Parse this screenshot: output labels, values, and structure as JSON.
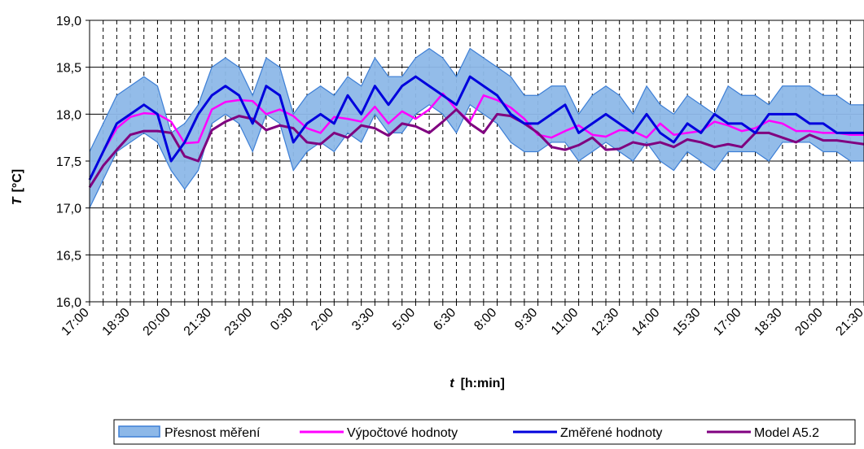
{
  "chart_data": {
    "type": "line",
    "xlabel_var": "t",
    "xlabel_unit": "[h:min]",
    "ylabel_var": "T",
    "ylabel_unit": "[°C]",
    "ylim": [
      16.0,
      19.0
    ],
    "ytick_step": 0.5,
    "yticks": [
      "16,0",
      "16,5",
      "17,0",
      "17,5",
      "18,0",
      "18,5",
      "19,0"
    ],
    "x_tick_labels": [
      "17:00",
      "18:30",
      "20:00",
      "21:30",
      "23:00",
      "0:30",
      "2:00",
      "3:30",
      "5:00",
      "6:30",
      "8:00",
      "9:30",
      "11:00",
      "12:30",
      "14:00",
      "15:30",
      "17:00",
      "18:30",
      "20:00",
      "21:30"
    ],
    "n_points": 58,
    "points_per_tick": 3,
    "grid": true,
    "legend_position": "bottom",
    "colors": {
      "band_fill": "#8db8e8",
      "band_edge": "#3d7fd6",
      "calc": "#ff00ff",
      "measured": "#0000dd",
      "model": "#800080"
    },
    "series": [
      {
        "name": "Přesnost měření",
        "kind": "band",
        "upper": [
          17.6,
          17.9,
          18.2,
          18.3,
          18.4,
          18.3,
          17.8,
          17.9,
          18.1,
          18.5,
          18.6,
          18.5,
          18.2,
          18.6,
          18.5,
          18.0,
          18.2,
          18.3,
          18.2,
          18.4,
          18.3,
          18.6,
          18.4,
          18.4,
          18.6,
          18.7,
          18.6,
          18.4,
          18.7,
          18.6,
          18.5,
          18.4,
          18.2,
          18.2,
          18.3,
          18.3,
          18.0,
          18.2,
          18.3,
          18.2,
          18.0,
          18.3,
          18.1,
          18.0,
          18.2,
          18.1,
          18.0,
          18.3,
          18.2,
          18.2,
          18.1,
          18.3,
          18.3,
          18.3,
          18.2,
          18.2,
          18.1,
          18.1
        ],
        "lower": [
          17.0,
          17.3,
          17.6,
          17.7,
          17.8,
          17.7,
          17.4,
          17.2,
          17.4,
          17.9,
          18.0,
          17.9,
          17.6,
          18.0,
          17.9,
          17.4,
          17.6,
          17.7,
          17.6,
          17.8,
          17.7,
          18.0,
          17.8,
          17.8,
          18.0,
          18.1,
          18.0,
          17.8,
          18.1,
          18.0,
          17.9,
          17.7,
          17.6,
          17.6,
          17.7,
          17.7,
          17.5,
          17.6,
          17.7,
          17.6,
          17.5,
          17.7,
          17.5,
          17.4,
          17.6,
          17.5,
          17.4,
          17.6,
          17.6,
          17.6,
          17.5,
          17.7,
          17.7,
          17.7,
          17.6,
          17.6,
          17.5,
          17.5
        ]
      },
      {
        "name": "Výpočtové hodnoty",
        "kind": "line",
        "values": [
          17.3,
          17.6,
          17.85,
          17.97,
          18.01,
          18.0,
          17.92,
          17.69,
          17.7,
          18.05,
          18.13,
          18.15,
          18.14,
          18.0,
          18.05,
          17.98,
          17.85,
          17.8,
          17.97,
          17.95,
          17.92,
          18.08,
          17.9,
          18.03,
          17.95,
          18.05,
          18.22,
          18.05,
          17.92,
          18.2,
          18.15,
          18.07,
          17.95,
          17.78,
          17.75,
          17.82,
          17.88,
          17.78,
          17.76,
          17.83,
          17.82,
          17.75,
          17.9,
          17.78,
          17.8,
          17.82,
          17.92,
          17.88,
          17.82,
          17.85,
          17.93,
          17.9,
          17.82,
          17.82,
          17.8,
          17.8,
          17.78,
          17.78
        ]
      },
      {
        "name": "Změřené hodnoty",
        "kind": "line",
        "values": [
          17.3,
          17.6,
          17.9,
          18.0,
          18.1,
          18.0,
          17.5,
          17.7,
          18.0,
          18.2,
          18.3,
          18.2,
          17.9,
          18.3,
          18.2,
          17.7,
          17.9,
          18.0,
          17.9,
          18.2,
          18.0,
          18.3,
          18.1,
          18.3,
          18.4,
          18.3,
          18.2,
          18.1,
          18.4,
          18.3,
          18.2,
          18.0,
          17.9,
          17.9,
          18.0,
          18.1,
          17.8,
          17.9,
          18.0,
          17.9,
          17.8,
          18.0,
          17.8,
          17.7,
          17.9,
          17.8,
          18.0,
          17.9,
          17.9,
          17.8,
          18.0,
          18.0,
          18.0,
          17.9,
          17.9,
          17.8,
          17.8,
          17.8
        ]
      },
      {
        "name": "Model A5.2",
        "kind": "line",
        "values": [
          17.22,
          17.45,
          17.62,
          17.78,
          17.82,
          17.82,
          17.8,
          17.55,
          17.5,
          17.83,
          17.92,
          17.98,
          17.95,
          17.83,
          17.88,
          17.85,
          17.7,
          17.68,
          17.8,
          17.75,
          17.88,
          17.85,
          17.77,
          17.9,
          17.87,
          17.8,
          17.92,
          18.05,
          17.9,
          17.8,
          18.0,
          17.98,
          17.9,
          17.8,
          17.65,
          17.62,
          17.67,
          17.75,
          17.62,
          17.63,
          17.7,
          17.67,
          17.7,
          17.65,
          17.73,
          17.7,
          17.65,
          17.68,
          17.65,
          17.8,
          17.8,
          17.75,
          17.7,
          17.78,
          17.72,
          17.72,
          17.7,
          17.68
        ]
      }
    ]
  }
}
